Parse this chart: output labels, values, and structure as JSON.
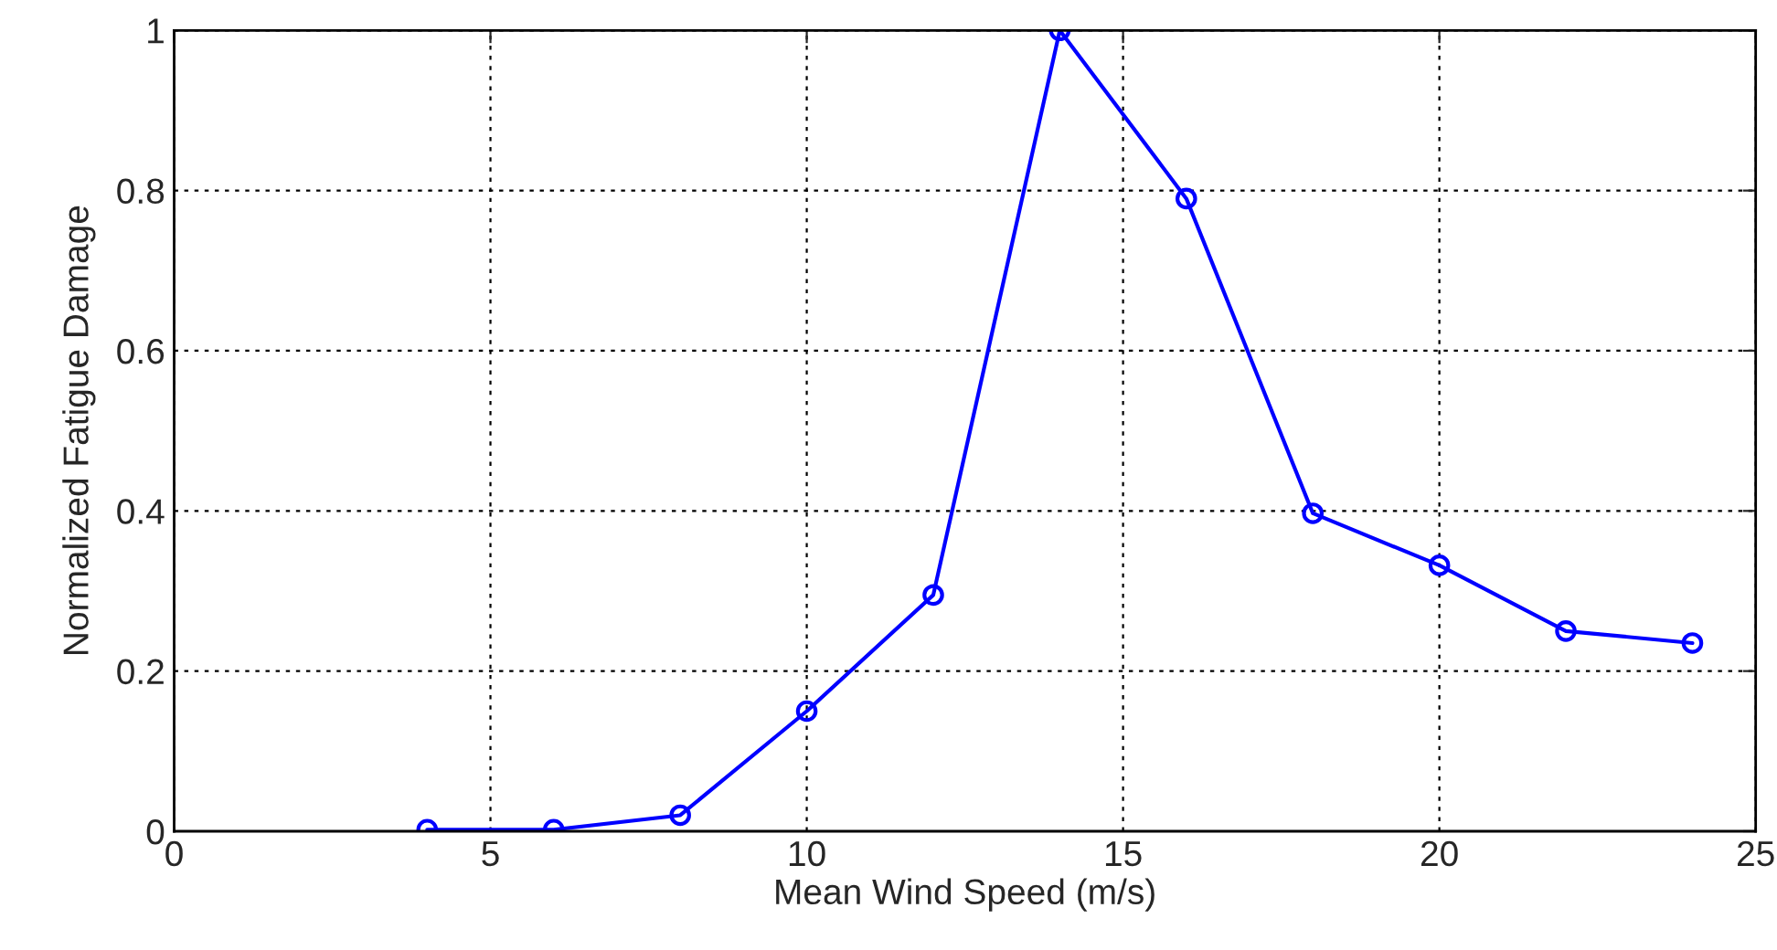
{
  "chart_data": {
    "type": "line",
    "xlabel": "Mean Wind Speed (m/s)",
    "ylabel": "Normalized Fatigue Damage",
    "x": [
      4,
      6,
      8,
      10,
      12,
      14,
      16,
      18,
      20,
      22,
      24
    ],
    "series": [
      {
        "color": "#0000ff",
        "values": [
          0.002,
          0.002,
          0.02,
          0.15,
          0.295,
          1.0,
          0.79,
          0.397,
          0.332,
          0.25,
          0.235
        ]
      }
    ],
    "xlim": [
      0,
      25
    ],
    "xticks": [
      0,
      5,
      10,
      15,
      20,
      25
    ],
    "ylim": [
      0,
      1
    ],
    "yticks": [
      0,
      {
        "value": 0.2,
        "label": "0.2"
      },
      {
        "value": 0.4,
        "label": "0.4"
      },
      {
        "value": 0.6,
        "label": "0.6"
      },
      {
        "value": 0.8,
        "label": "0.8"
      },
      1
    ],
    "grid": true,
    "marker": "circle",
    "line_style": "solid"
  }
}
